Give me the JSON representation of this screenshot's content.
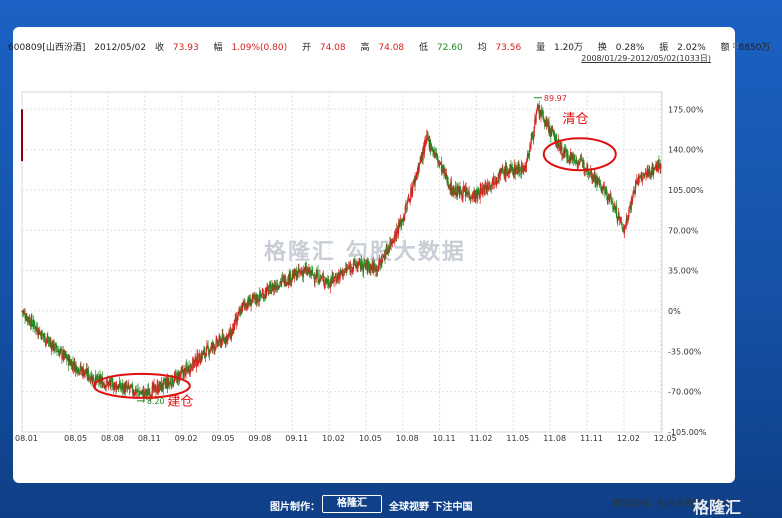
{
  "header": {
    "code_name": "600809[山西汾酒]",
    "date": "2012/05/02",
    "close_label": "收",
    "close_value": "73.93",
    "change_label": "幅",
    "change_value": "1.09%(0.80)",
    "open_label": "开",
    "open_value": "74.08",
    "high_label": "高",
    "high_value": "74.08",
    "low_label": "低",
    "low_value": "72.60",
    "avg_label": "均",
    "avg_value": "73.56",
    "volume_label": "量",
    "volume_value": "1.20万",
    "turnover_label": "换",
    "turnover_value": "0.28%",
    "amplitude_label": "振",
    "amplitude_value": "2.02%",
    "amount_label": "额",
    "amount_value": "8850万",
    "range": "2008/01/29-2012/05/02(1033日)"
  },
  "watermark": {
    "logo": "格隆汇",
    "text": "勾股大数据"
  },
  "source": "数据支持：勾股大数据、Wind",
  "footer": {
    "made_by": "图片制作：",
    "logo": "格隆汇",
    "slogan": "全球视野 下注中国",
    "brand": "格隆汇"
  },
  "chart_data": {
    "type": "candlestick",
    "x_tick_labels": [
      "08.01",
      "08.05",
      "08.08",
      "08.11",
      "09.02",
      "09.05",
      "09.08",
      "09.11",
      "10.02",
      "10.05",
      "10.08",
      "10.11",
      "11.02",
      "11.05",
      "11.08",
      "11.11",
      "12.02",
      "12.05"
    ],
    "y_tick_labels": [
      "175.00%",
      "140.00%",
      "105.00%",
      "70.00%",
      "35.00%",
      "0%",
      "-35.00%",
      "-70.00%",
      "-105.00%"
    ],
    "ylim": [
      -105,
      190
    ],
    "grid": true,
    "annotations": [
      {
        "text": "89.97",
        "kind": "high",
        "x_label": "11.08"
      },
      {
        "text": "8.20",
        "kind": "low",
        "x_label": "08.11"
      },
      {
        "text": "清仓",
        "kind": "label",
        "x_label": "11.11"
      },
      {
        "text": "建仓",
        "kind": "label",
        "x_label": "09.02"
      }
    ],
    "anchors": [
      {
        "x": "08.01",
        "y": 0
      },
      {
        "x": "08.03",
        "y": -25
      },
      {
        "x": "08.05",
        "y": -45
      },
      {
        "x": "08.07",
        "y": -60
      },
      {
        "x": "08.09",
        "y": -66
      },
      {
        "x": "08.11",
        "y": -72
      },
      {
        "x": "09.01",
        "y": -62
      },
      {
        "x": "09.02",
        "y": -55
      },
      {
        "x": "09.04",
        "y": -35
      },
      {
        "x": "09.06",
        "y": -20
      },
      {
        "x": "09.07",
        "y": 5
      },
      {
        "x": "09.08",
        "y": 10
      },
      {
        "x": "09.10",
        "y": 25
      },
      {
        "x": "09.12",
        "y": 35
      },
      {
        "x": "10.02",
        "y": 25
      },
      {
        "x": "10.04",
        "y": 40
      },
      {
        "x": "10.06",
        "y": 38
      },
      {
        "x": "10.08",
        "y": 80
      },
      {
        "x": "10.10",
        "y": 150
      },
      {
        "x": "10.12",
        "y": 105
      },
      {
        "x": "11.02",
        "y": 100
      },
      {
        "x": "11.04",
        "y": 120
      },
      {
        "x": "11.06",
        "y": 125
      },
      {
        "x": "11.07",
        "y": 175
      },
      {
        "x": "11.09",
        "y": 138
      },
      {
        "x": "11.11",
        "y": 125
      },
      {
        "x": "12.01",
        "y": 95
      },
      {
        "x": "12.02",
        "y": 70
      },
      {
        "x": "12.03",
        "y": 112
      },
      {
        "x": "12.05",
        "y": 128
      }
    ]
  }
}
